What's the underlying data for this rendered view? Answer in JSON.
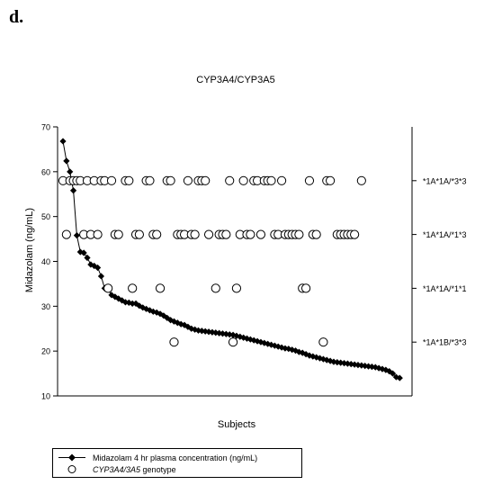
{
  "panel_label": "d.",
  "chart_data": {
    "type": "scatter",
    "title": "CYP3A4/CYP3A5",
    "xlabel": "Subjects",
    "ylabel": "Midazolam (ng/mL)",
    "ylim": [
      10,
      70
    ],
    "y_ticks": [
      10,
      20,
      30,
      40,
      50,
      60,
      70
    ],
    "x_count": 100,
    "grid": false,
    "legend_placement": "bottom-left",
    "right_axis_labels": [
      {
        "label": "*1A*1A/*3*3",
        "y": 58
      },
      {
        "label": "*1A*1A/*1*3",
        "y": 46
      },
      {
        "label": "*1A*1A/*1*1",
        "y": 34
      },
      {
        "label": "*1A*1B/*3*3",
        "y": 22
      }
    ],
    "series": [
      {
        "name": "Midazolam 4 hr plasma concentration (ng/mL)",
        "marker": "diamond-filled",
        "line": true,
        "values": [
          66.8,
          62.4,
          60.0,
          55.8,
          45.8,
          42.1,
          41.9,
          40.8,
          39.3,
          39.0,
          38.6,
          36.7,
          34.0,
          33.7,
          32.5,
          32.1,
          31.7,
          31.3,
          30.9,
          30.8,
          30.6,
          30.6,
          30.1,
          29.7,
          29.4,
          29.1,
          28.8,
          28.6,
          28.3,
          27.9,
          27.4,
          26.9,
          26.6,
          26.3,
          26.0,
          25.8,
          25.4,
          25.0,
          24.8,
          24.6,
          24.5,
          24.4,
          24.3,
          24.2,
          24.1,
          24.0,
          23.9,
          23.8,
          23.7,
          23.6,
          23.4,
          23.2,
          23.0,
          22.8,
          22.6,
          22.4,
          22.2,
          22.0,
          21.8,
          21.6,
          21.4,
          21.2,
          21.0,
          20.8,
          20.6,
          20.5,
          20.3,
          20.1,
          19.8,
          19.6,
          19.3,
          19.0,
          18.8,
          18.6,
          18.4,
          18.2,
          18.0,
          17.8,
          17.6,
          17.5,
          17.4,
          17.3,
          17.2,
          17.1,
          17.0,
          16.9,
          16.8,
          16.7,
          16.6,
          16.5,
          16.4,
          16.2,
          16.0,
          15.8,
          15.5,
          15.0,
          14.2,
          14.0
        ]
      },
      {
        "name": "CYP3A4/3A5 genotype",
        "marker": "circle-open",
        "line": false,
        "points": [
          {
            "x": 1,
            "y": 58
          },
          {
            "x": 2,
            "y": 46
          },
          {
            "x": 3,
            "y": 58
          },
          {
            "x": 4,
            "y": 58
          },
          {
            "x": 5,
            "y": 58
          },
          {
            "x": 6,
            "y": 58
          },
          {
            "x": 7,
            "y": 46
          },
          {
            "x": 8,
            "y": 58
          },
          {
            "x": 9,
            "y": 46
          },
          {
            "x": 10,
            "y": 58
          },
          {
            "x": 11,
            "y": 46
          },
          {
            "x": 12,
            "y": 58
          },
          {
            "x": 13,
            "y": 58
          },
          {
            "x": 14,
            "y": 34
          },
          {
            "x": 15,
            "y": 58
          },
          {
            "x": 16,
            "y": 46
          },
          {
            "x": 17,
            "y": 46
          },
          {
            "x": 19,
            "y": 58
          },
          {
            "x": 20,
            "y": 58
          },
          {
            "x": 21,
            "y": 34
          },
          {
            "x": 22,
            "y": 46
          },
          {
            "x": 23,
            "y": 46
          },
          {
            "x": 25,
            "y": 58
          },
          {
            "x": 26,
            "y": 58
          },
          {
            "x": 27,
            "y": 46
          },
          {
            "x": 28,
            "y": 46
          },
          {
            "x": 29,
            "y": 34
          },
          {
            "x": 31,
            "y": 58
          },
          {
            "x": 32,
            "y": 58
          },
          {
            "x": 33,
            "y": 22
          },
          {
            "x": 34,
            "y": 46
          },
          {
            "x": 35,
            "y": 46
          },
          {
            "x": 36,
            "y": 46
          },
          {
            "x": 37,
            "y": 58
          },
          {
            "x": 38,
            "y": 46
          },
          {
            "x": 39,
            "y": 46
          },
          {
            "x": 40,
            "y": 58
          },
          {
            "x": 41,
            "y": 58
          },
          {
            "x": 42,
            "y": 58
          },
          {
            "x": 43,
            "y": 46
          },
          {
            "x": 45,
            "y": 34
          },
          {
            "x": 46,
            "y": 46
          },
          {
            "x": 47,
            "y": 46
          },
          {
            "x": 48,
            "y": 46
          },
          {
            "x": 49,
            "y": 58
          },
          {
            "x": 50,
            "y": 22
          },
          {
            "x": 51,
            "y": 34
          },
          {
            "x": 52,
            "y": 46
          },
          {
            "x": 53,
            "y": 58
          },
          {
            "x": 54,
            "y": 46
          },
          {
            "x": 55,
            "y": 46
          },
          {
            "x": 56,
            "y": 58
          },
          {
            "x": 57,
            "y": 58
          },
          {
            "x": 58,
            "y": 46
          },
          {
            "x": 59,
            "y": 58
          },
          {
            "x": 60,
            "y": 58
          },
          {
            "x": 61,
            "y": 58
          },
          {
            "x": 62,
            "y": 46
          },
          {
            "x": 63,
            "y": 46
          },
          {
            "x": 64,
            "y": 58
          },
          {
            "x": 65,
            "y": 46
          },
          {
            "x": 66,
            "y": 46
          },
          {
            "x": 67,
            "y": 46
          },
          {
            "x": 68,
            "y": 46
          },
          {
            "x": 69,
            "y": 46
          },
          {
            "x": 70,
            "y": 34
          },
          {
            "x": 71,
            "y": 34
          },
          {
            "x": 72,
            "y": 58
          },
          {
            "x": 73,
            "y": 46
          },
          {
            "x": 74,
            "y": 46
          },
          {
            "x": 76,
            "y": 22
          },
          {
            "x": 77,
            "y": 58
          },
          {
            "x": 78,
            "y": 58
          },
          {
            "x": 80,
            "y": 46
          },
          {
            "x": 81,
            "y": 46
          },
          {
            "x": 82,
            "y": 46
          },
          {
            "x": 83,
            "y": 46
          },
          {
            "x": 84,
            "y": 46
          },
          {
            "x": 85,
            "y": 46
          },
          {
            "x": 87,
            "y": 58
          }
        ]
      }
    ]
  },
  "legend": {
    "line_label": "Midazolam 4 hr plasma concentration (ng/mL)",
    "circle_label_italic": "CYP3A4/3A5",
    "circle_label_rest": " genotype"
  }
}
